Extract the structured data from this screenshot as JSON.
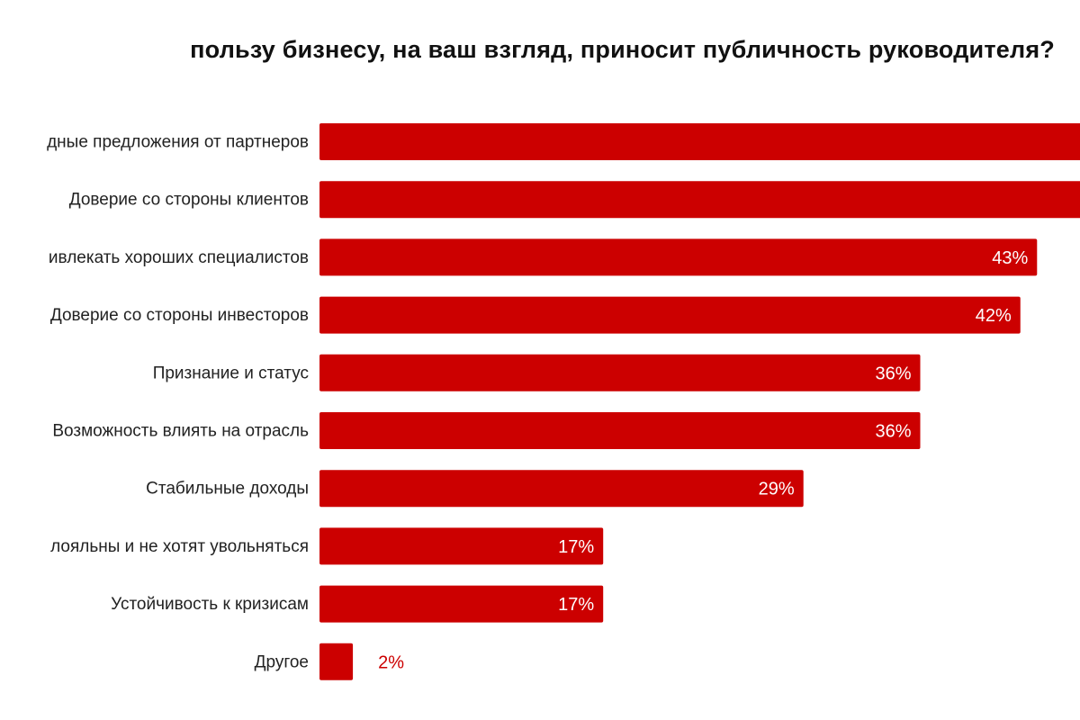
{
  "chart_data": {
    "type": "bar",
    "orientation": "horizontal",
    "title": "пользу бизнесу, на ваш взгляд, приносит публичность руководителя?",
    "categories": [
      "дные предложения от партнеров",
      "Доверие со стороны клиентов",
      "ивлекать хороших специалистов",
      "Доверие со стороны инвесторов",
      "Признание и статус",
      "Возможность влиять на отрасль",
      "Стабильные доходы",
      "лояльны и не хотят увольняться",
      "Устойчивость к кризисам",
      "Другое"
    ],
    "values": [
      48,
      47,
      43,
      42,
      36,
      36,
      29,
      17,
      17,
      2
    ],
    "value_labels": [
      "",
      "",
      "43%",
      "42%",
      "36%",
      "36%",
      "29%",
      "17%",
      "17%",
      "2%"
    ],
    "xlim": [
      0,
      48
    ],
    "grid": false,
    "legend": "none",
    "bar_color": "#cc0000",
    "label_color_inside": "#ffffff",
    "label_color_outside": "#cc0000"
  }
}
